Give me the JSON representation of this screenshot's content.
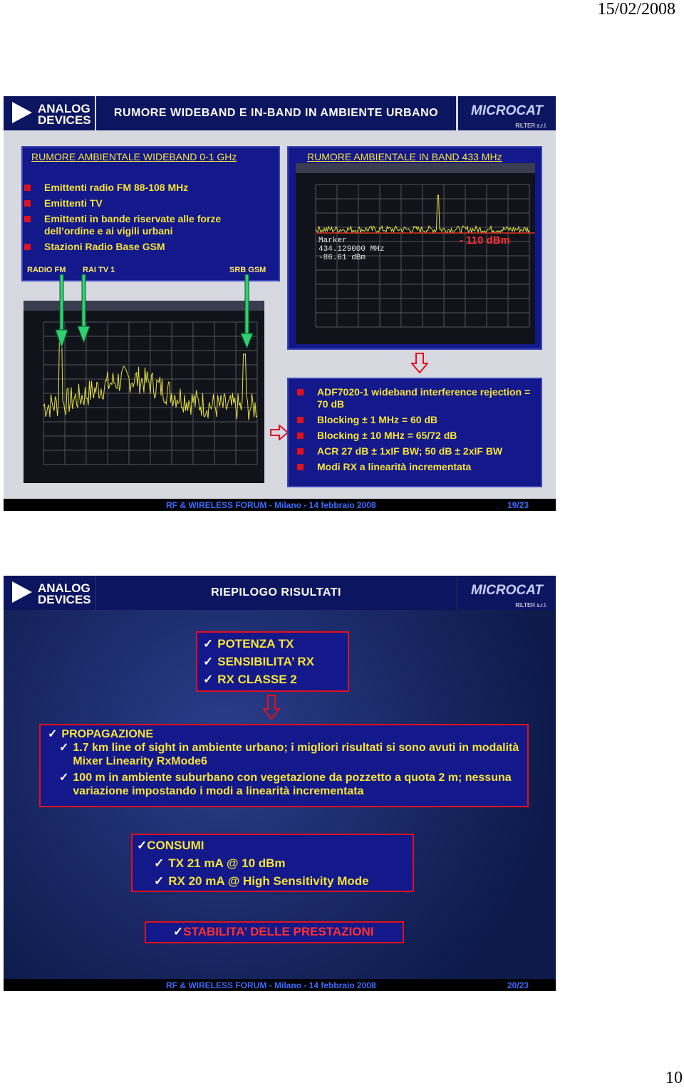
{
  "header": {
    "date": "15/02/2008"
  },
  "slides": [
    {
      "logo_left": "ANALOG DEVICES",
      "title": "RUMORE WIDEBAND E IN-BAND IN AMBIENTE URBANO",
      "logo_right": "MICROCAT",
      "logo_right_sub": "RILTER s.r.l.",
      "left_panel": {
        "heading": "RUMORE AMBIENTALE WIDEBAND 0-1 GHz",
        "bullets": [
          "Emittenti radio FM 88-108 MHz",
          "Emittenti TV",
          "Emittenti in bande riservate alle forze dell’ordine e ai vigili urbani",
          "Stazioni Radio Base GSM"
        ],
        "markers": [
          "RADIO FM",
          "RAI TV 1",
          "SRB GSM"
        ]
      },
      "right_panel": {
        "heading": "RUMORE AMBIENTALE  IN BAND 433 MHz",
        "marker_label": "Marker",
        "marker_freq": "434.129000 MHz",
        "marker_level": "-86.61 dBm",
        "annotation": "- 110 dBm"
      },
      "specs": [
        "ADF7020-1 wideband interference rejection = 70 dB",
        "Blocking ± 1 MHz  = 60 dB",
        "Blocking ± 10 MHz = 65/72 dB",
        "ACR 27 dB ± 1xIF BW; 50 dB ± 2xIF BW",
        "Modi RX a linearità incrementata"
      ],
      "footer": "RF & WIRELESS FORUM - Milano - 14 febbraio 2008",
      "page": "19/23"
    },
    {
      "logo_left": "ANALOG DEVICES",
      "title": "RIEPILOGO RISULTATI",
      "logo_right": "MICROCAT",
      "logo_right_sub": "RILTER s.r.l.",
      "box1": [
        "POTENZA TX",
        "SENSIBILITA’ RX",
        "RX CLASSE 2"
      ],
      "box2": {
        "heading": "PROPAGAZIONE",
        "items": [
          "1.7 km line of sight in ambiente urbano; i migliori risultati si sono avuti in modalità Mixer Linearity RxMode6",
          "100 m in ambiente suburbano con vegetazione da pozzetto a quota 2 m; nessuna variazione impostando i modi a linearità incrementata"
        ]
      },
      "box3": {
        "heading": "CONSUMI",
        "items": [
          "TX 21 mA @ 10 dBm",
          "RX 20 mA @ High Sensitivity Mode"
        ]
      },
      "box4": "STABILITA’ DELLE PRESTAZIONI",
      "footer": "RF & WIRELESS FORUM - Milano - 14 febbraio 2008",
      "page": "20/23"
    }
  ],
  "page_number": "10"
}
